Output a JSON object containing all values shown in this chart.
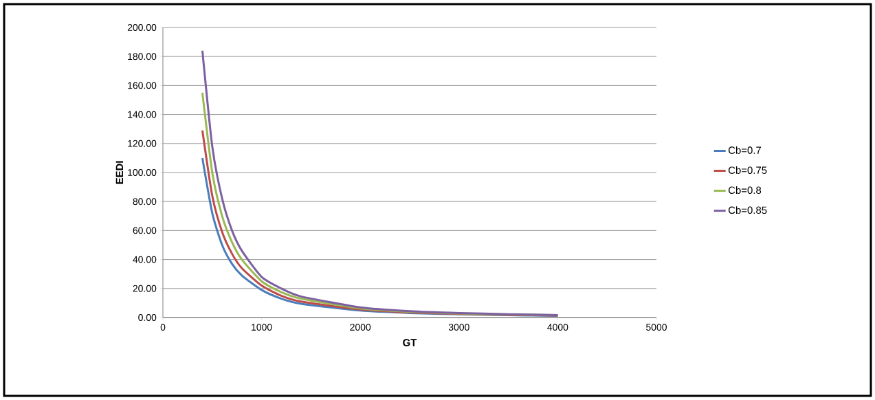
{
  "chart_data": {
    "type": "line",
    "xlabel": "GT",
    "ylabel": "EEDI",
    "xlim": [
      0,
      5000
    ],
    "xticks": [
      0,
      1000,
      2000,
      3000,
      4000,
      5000
    ],
    "ylim": [
      0,
      200
    ],
    "yticks": [
      {
        "value": 0,
        "label": "0.00"
      },
      {
        "value": 20,
        "label": "20.00"
      },
      {
        "value": 40,
        "label": "40.00"
      },
      {
        "value": 60,
        "label": "60.00"
      },
      {
        "value": 80,
        "label": "80.00"
      },
      {
        "value": 100,
        "label": "100.00"
      },
      {
        "value": 120,
        "label": "120.00"
      },
      {
        "value": 140,
        "label": "140.00"
      },
      {
        "value": 160,
        "label": "160.00"
      },
      {
        "value": 180,
        "label": "180.00"
      },
      {
        "value": 200,
        "label": "200.00"
      }
    ],
    "grid": "y",
    "legend": "right",
    "marker": "none",
    "line_style": "solid",
    "x": [
      400,
      500,
      600,
      700,
      800,
      1000,
      1200,
      1400,
      2000,
      2500,
      3000,
      3500,
      4000
    ],
    "series": [
      {
        "name": "Cb=0.7",
        "color": "#4a7ebb",
        "values": [
          110,
          72,
          50,
          37,
          29,
          19,
          13,
          9.5,
          4.8,
          3.1,
          2.2,
          1.6,
          1.2
        ]
      },
      {
        "name": "Cb=0.75",
        "color": "#be4b48",
        "values": [
          129,
          84,
          59,
          44,
          34,
          22,
          15,
          11,
          5.5,
          3.5,
          2.5,
          1.8,
          1.4
        ]
      },
      {
        "name": "Cb=0.8",
        "color": "#98b954",
        "values": [
          155,
          100,
          70,
          52,
          40,
          25,
          17.5,
          13,
          6.3,
          4,
          2.8,
          2.1,
          1.6
        ]
      },
      {
        "name": "Cb=0.85",
        "color": "#7d60a0",
        "values": [
          184,
          118,
          82,
          60,
          46,
          28,
          20,
          14.5,
          7,
          4.4,
          3.1,
          2.3,
          1.7
        ]
      }
    ]
  }
}
